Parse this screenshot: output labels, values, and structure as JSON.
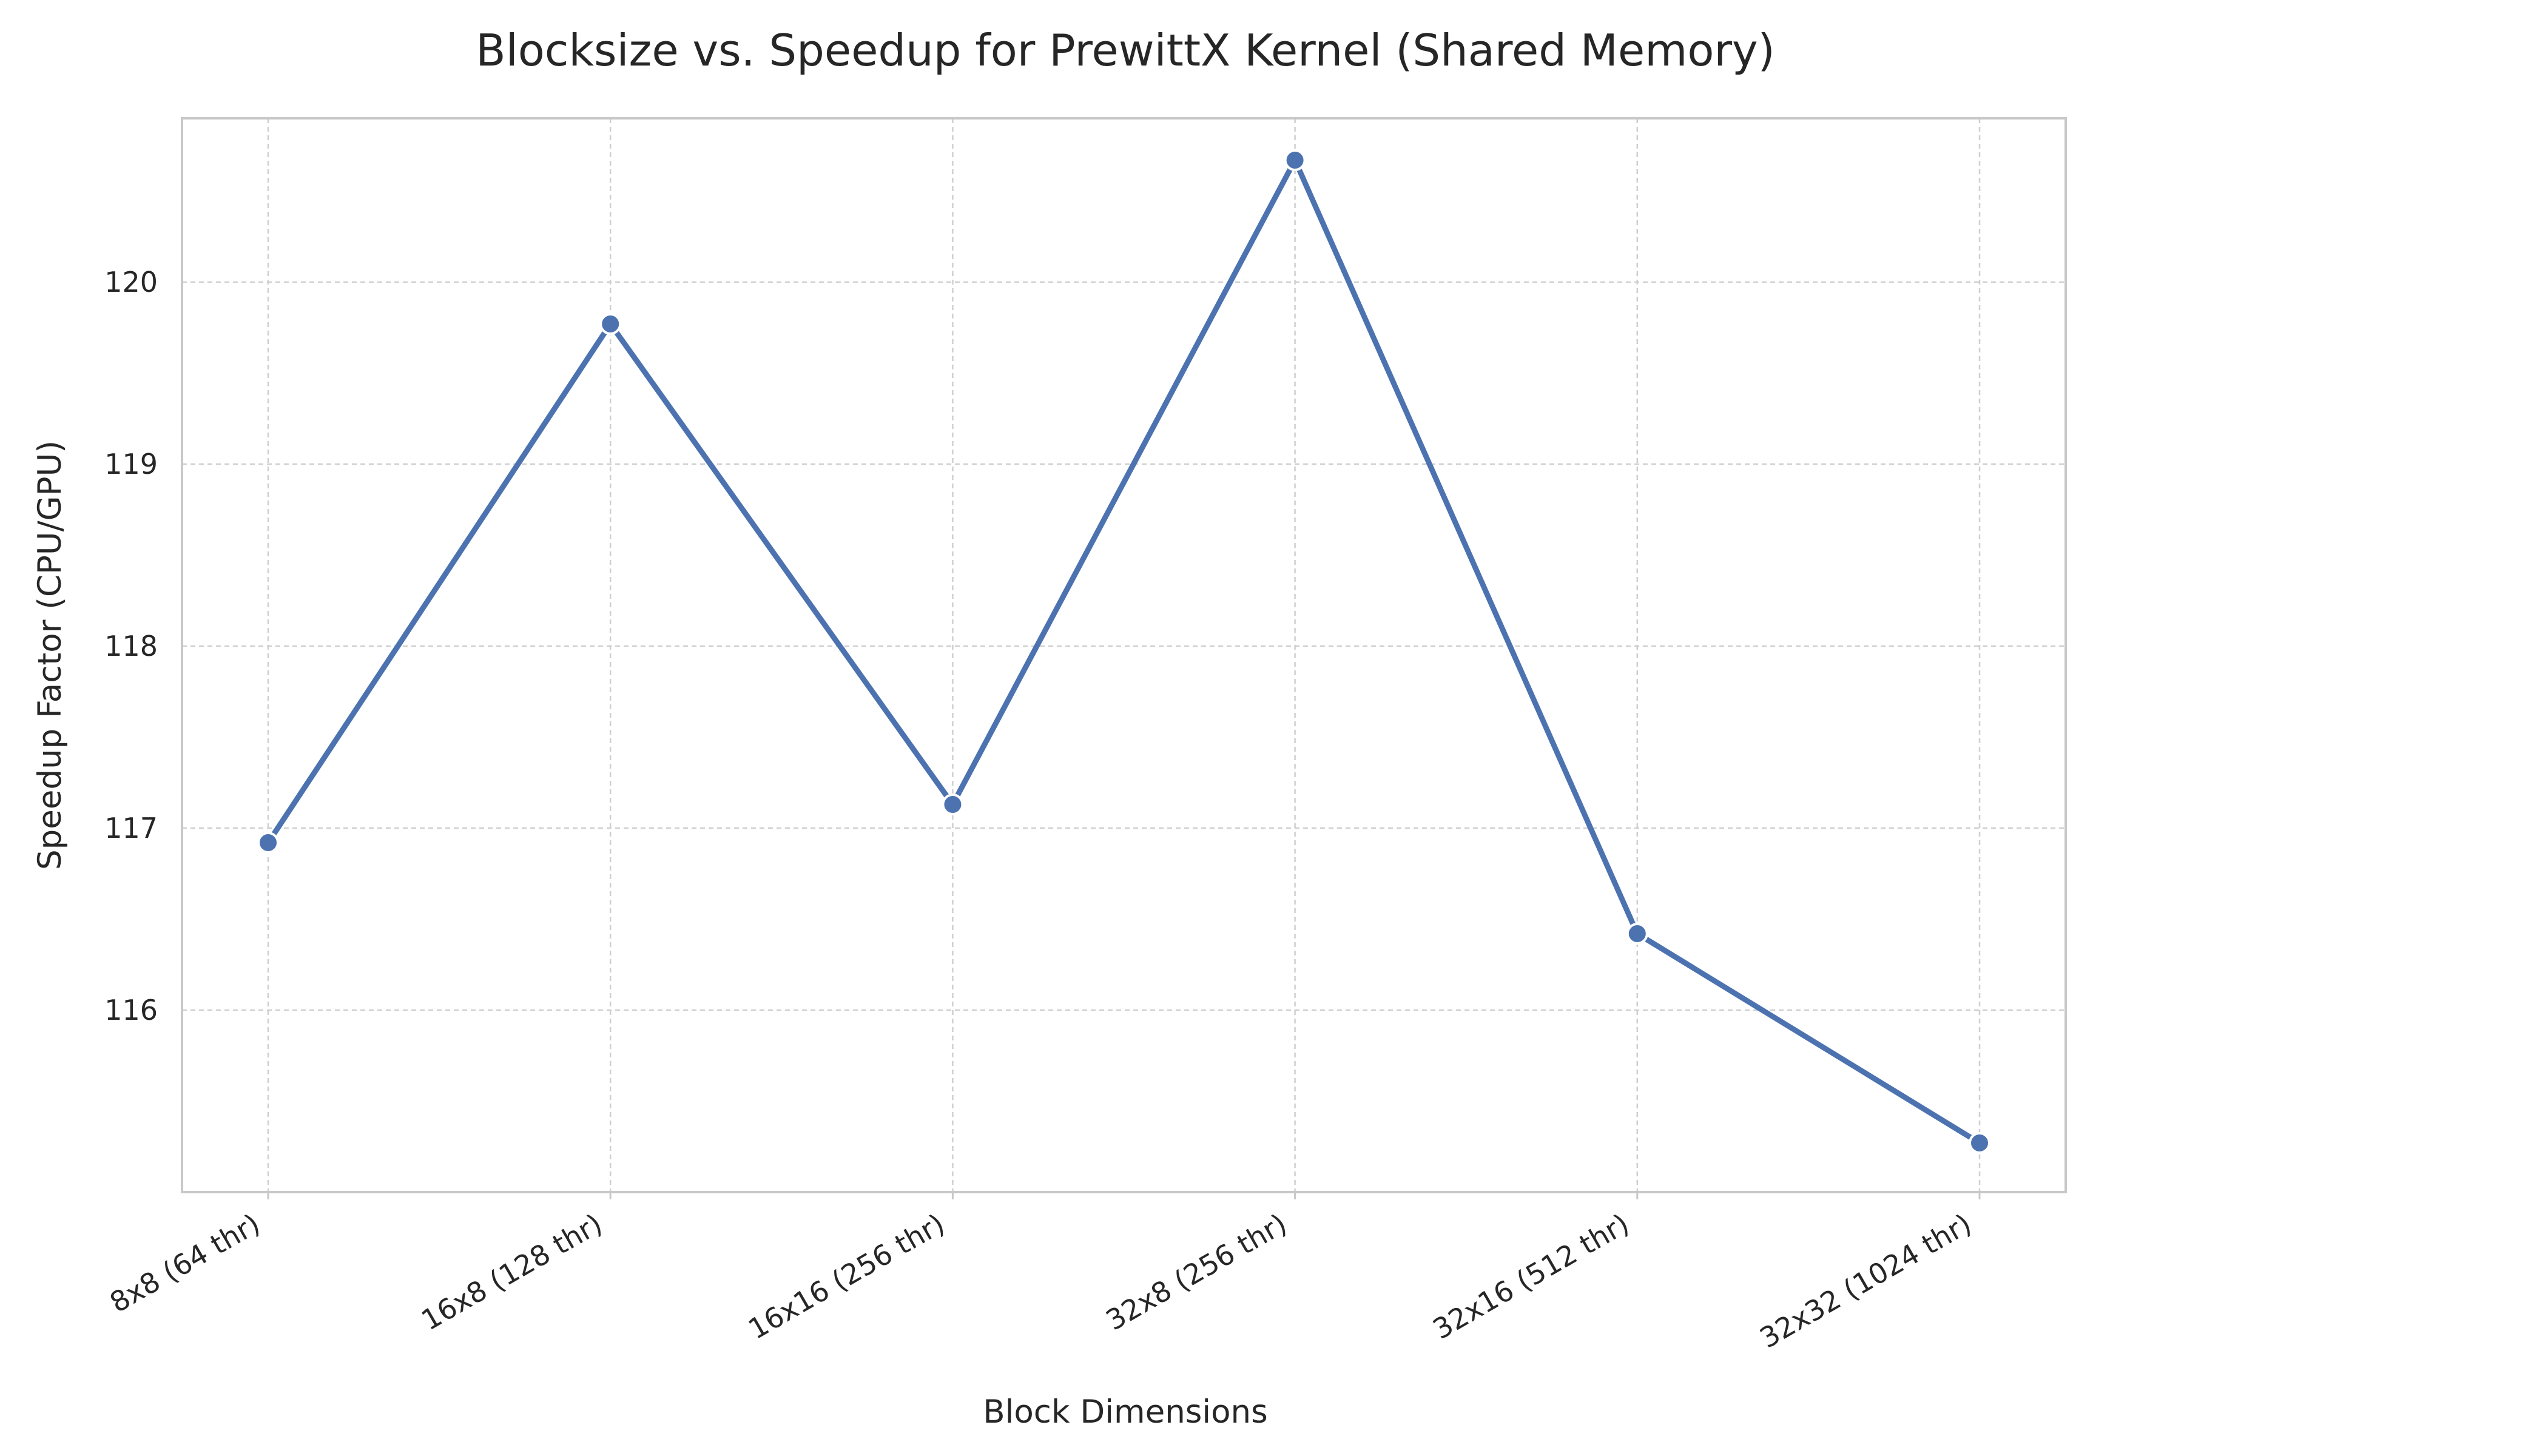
{
  "chart_data": {
    "type": "line",
    "title": "Blocksize vs. Speedup for PrewittX Kernel (Shared Memory)",
    "xlabel": "Block Dimensions",
    "ylabel": "Speedup Factor (CPU/GPU)",
    "categories": [
      "8x8 (64 thr)",
      "16x8 (128 thr)",
      "16x16 (256 thr)",
      "32x8 (256 thr)",
      "32x16 (512 thr)",
      "32x32 (1024 thr)"
    ],
    "series": [
      {
        "values": [
          116.92,
          119.77,
          117.13,
          120.67,
          116.42,
          115.27
        ]
      }
    ],
    "ylim": [
      115.0,
      120.9
    ],
    "yticks": [
      116,
      117,
      118,
      119,
      120
    ],
    "grid": true,
    "line_color": "#4C72B0"
  }
}
